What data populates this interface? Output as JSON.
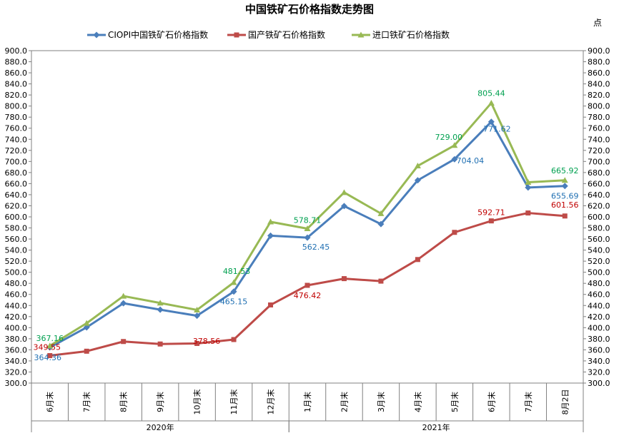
{
  "chart_data": {
    "type": "line",
    "title": "中国铁矿石价格指数走势图",
    "unit": "点",
    "ylim": [
      300,
      900
    ],
    "ystep": 20,
    "categories": [
      "6月末",
      "7月末",
      "8月末",
      "9月末",
      "10月末",
      "11月末",
      "12月末",
      "1月末",
      "2月末",
      "3月末",
      "4月末",
      "5月末",
      "6月末",
      "7月末",
      "8月2日"
    ],
    "year_groups": [
      {
        "label": "2020年",
        "start": 0,
        "end": 6
      },
      {
        "label": "2021年",
        "start": 7,
        "end": 14
      }
    ],
    "legend_position": "top",
    "series": [
      {
        "name": "CIOPI中国铁矿石价格指数",
        "color": "#4a7ebb",
        "marker": "diamond",
        "label_color": "#1f6fb2",
        "values": [
          364.36,
          400.5,
          444.0,
          432.5,
          421.5,
          465.15,
          566.0,
          562.45,
          619.5,
          587.0,
          666.0,
          704.04,
          771.62,
          653.0,
          655.69
        ],
        "labels": [
          {
            "index": 0,
            "text": "364.36"
          },
          {
            "index": 5,
            "text": "465.15"
          },
          {
            "index": 7,
            "text": "562.45"
          },
          {
            "index": 11,
            "text": "704.04"
          },
          {
            "index": 12,
            "text": "771.62"
          },
          {
            "index": 14,
            "text": "655.69"
          }
        ]
      },
      {
        "name": "国产铁矿石价格指数",
        "color": "#be4b48",
        "marker": "square",
        "label_color": "#c00000",
        "values": [
          349.55,
          357.5,
          375.0,
          370.5,
          371.5,
          378.56,
          441.0,
          476.42,
          488.5,
          484.0,
          523.0,
          572.0,
          592.71,
          607.0,
          601.56
        ],
        "labels": [
          {
            "index": 0,
            "text": "349.55"
          },
          {
            "index": 5,
            "text": "378.56"
          },
          {
            "index": 7,
            "text": "476.42"
          },
          {
            "index": 12,
            "text": "592.71"
          },
          {
            "index": 14,
            "text": "601.56"
          }
        ]
      },
      {
        "name": "进口铁矿石价格指数",
        "color": "#98b954",
        "marker": "triangle",
        "label_color": "#00a050",
        "values": [
          367.16,
          408.0,
          457.0,
          444.5,
          432.0,
          481.53,
          591.0,
          578.71,
          644.0,
          606.0,
          692.0,
          729.0,
          805.44,
          662.5,
          665.92
        ],
        "labels": [
          {
            "index": 0,
            "text": "367.16"
          },
          {
            "index": 5,
            "text": "481.53"
          },
          {
            "index": 7,
            "text": "578.71"
          },
          {
            "index": 11,
            "text": "729.00"
          },
          {
            "index": 12,
            "text": "805.44"
          },
          {
            "index": 14,
            "text": "665.92"
          }
        ]
      }
    ]
  }
}
